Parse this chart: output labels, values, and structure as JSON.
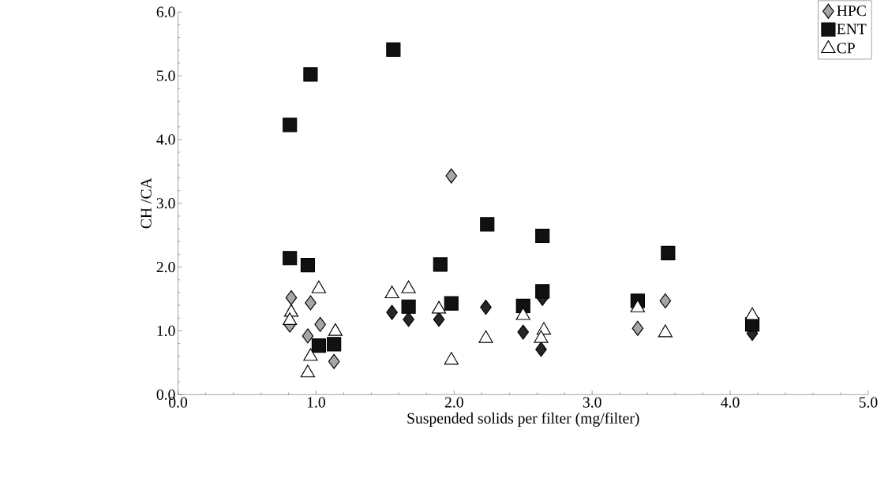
{
  "chart_data": {
    "type": "scatter",
    "xlabel": "Suspended solids per filter (mg/filter)",
    "ylabel": "CH /CA",
    "xlim": [
      0,
      5
    ],
    "ylim": [
      0,
      6
    ],
    "xticks": [
      {
        "value": 0,
        "label": "0.0"
      },
      {
        "value": 1,
        "label": "1.0"
      },
      {
        "value": 2,
        "label": "2.0"
      },
      {
        "value": 3,
        "label": "3.0"
      },
      {
        "value": 4,
        "label": "4.0"
      },
      {
        "value": 5,
        "label": "5.0"
      }
    ],
    "yticks": [
      {
        "value": 0,
        "label": "0.0"
      },
      {
        "value": 1,
        "label": "1.0"
      },
      {
        "value": 2,
        "label": "2.0"
      },
      {
        "value": 3,
        "label": "3.0"
      },
      {
        "value": 4,
        "label": "4.0"
      },
      {
        "value": 5,
        "label": "5.0"
      },
      {
        "value": 6,
        "label": "6.0"
      }
    ],
    "grid": false,
    "legend": "top right",
    "series": [
      {
        "name": "HPC",
        "marker": "diamond",
        "color": "#a6a6a6",
        "x": [
          0.82,
          0.81,
          0.96,
          0.94,
          1.03,
          1.13,
          1.98,
          3.33,
          3.53,
          1.55,
          1.67,
          1.89,
          2.23,
          2.5,
          2.64,
          2.63,
          4.16
        ],
        "values": [
          1.52,
          1.09,
          1.44,
          0.92,
          1.1,
          0.52,
          3.43,
          1.04,
          1.47,
          1.29,
          1.18,
          1.18,
          1.37,
          0.98,
          1.51,
          0.71,
          0.96
        ],
        "colors": [
          "#a6a6a6",
          "#a6a6a6",
          "#a6a6a6",
          "#a6a6a6",
          "#a6a6a6",
          "#a6a6a6",
          "#a6a6a6",
          "#a6a6a6",
          "#a6a6a6",
          "#262626",
          "#262626",
          "#262626",
          "#262626",
          "#262626",
          "#262626",
          "#262626",
          "#262626"
        ]
      },
      {
        "name": "ENT",
        "marker": "square",
        "color": "#111111",
        "x": [
          0.81,
          0.96,
          1.56,
          0.81,
          0.94,
          1.02,
          1.13,
          1.67,
          1.9,
          1.98,
          2.24,
          2.5,
          2.64,
          2.64,
          3.33,
          3.55,
          4.16
        ],
        "values": [
          4.23,
          5.02,
          5.41,
          2.14,
          2.03,
          0.77,
          0.79,
          1.38,
          2.04,
          1.43,
          2.67,
          1.39,
          1.62,
          2.49,
          1.47,
          2.22,
          1.1
        ]
      },
      {
        "name": "CP",
        "marker": "triangle",
        "color": "#ffffff",
        "x": [
          1.02,
          0.82,
          0.81,
          1.14,
          0.96,
          0.94,
          1.55,
          1.67,
          1.89,
          1.98,
          2.23,
          2.5,
          2.65,
          2.63,
          3.33,
          3.53,
          4.16
        ],
        "values": [
          1.66,
          1.29,
          1.16,
          0.99,
          0.6,
          0.34,
          1.58,
          1.66,
          1.34,
          0.54,
          0.88,
          1.24,
          1.01,
          0.88,
          1.36,
          0.97,
          1.24
        ]
      }
    ]
  }
}
